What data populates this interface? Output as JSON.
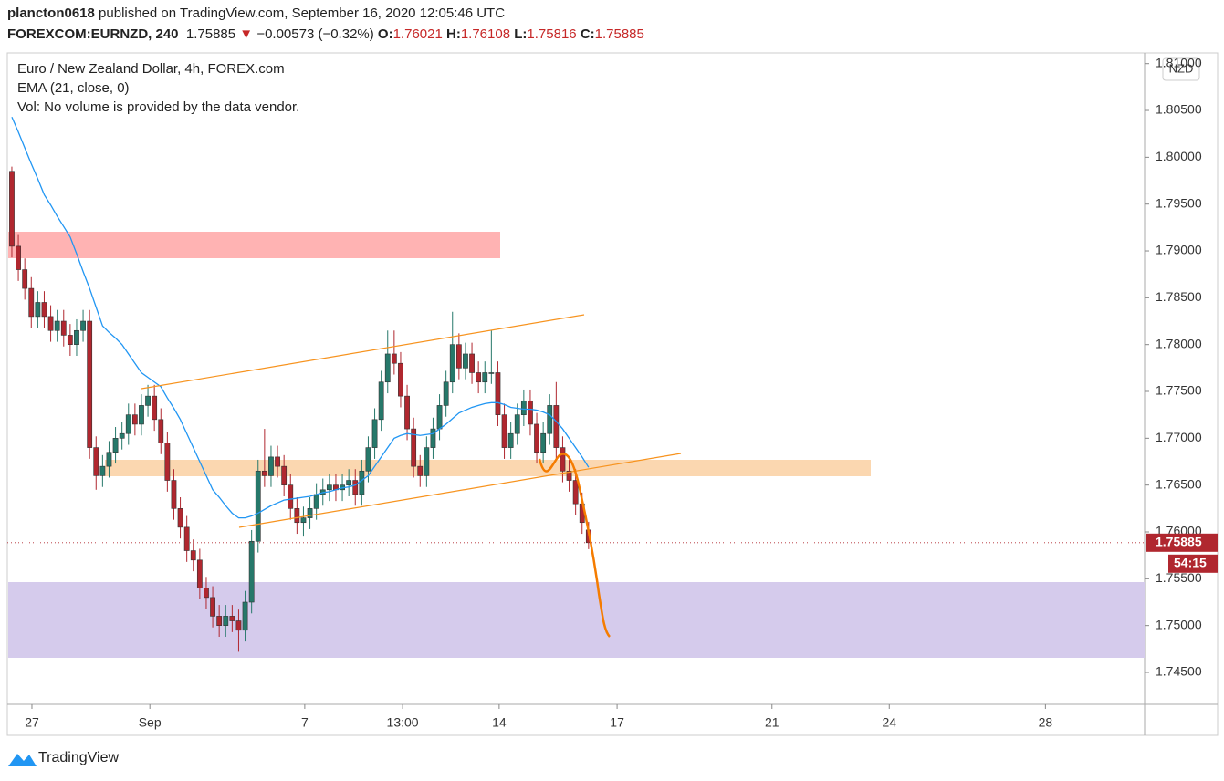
{
  "header": {
    "publisher": "plancton0618",
    "published": "published on TradingView.com, September 16, 2020 12:05:46 UTC",
    "symbol": "FOREXCOM:EURNZD, 240",
    "arrow": "▼",
    "change": "−0.00573 (−0.32%)",
    "o": "O:",
    "h": "H:",
    "l": "L:",
    "c": "C:"
  },
  "chart_data": {
    "type": "candlestick",
    "title": "Euro / New Zealand Dollar, 4h, FOREX.com",
    "indicator": "EMA (21, close, 0)",
    "volume_note": "Vol: No volume is provided by the data vendor.",
    "currency": "NZD",
    "countdown": "54:15",
    "up_color": "#26786a",
    "down_color": "#b0272f",
    "ema_color": "#2196f3",
    "open": [
      1.7985,
      1.7905,
      1.788,
      1.786,
      1.783,
      1.7845,
      1.783,
      1.7815,
      1.7825,
      1.781,
      1.78,
      1.7815,
      1.7825,
      1.769,
      1.766,
      1.767,
      1.7685,
      1.77,
      1.7705,
      1.7725,
      1.7715,
      1.7735,
      1.7745,
      1.772,
      1.7695,
      1.7655,
      1.7625,
      1.7605,
      1.758,
      1.757,
      1.754,
      1.753,
      1.751,
      1.75,
      1.751,
      1.7505,
      1.7495,
      1.7525,
      1.759,
      1.7665,
      1.766,
      1.768,
      1.767,
      1.765,
      1.7625,
      1.761,
      1.7615,
      1.7625,
      1.764,
      1.7645,
      1.765,
      1.7645,
      1.765,
      1.7655,
      1.764,
      1.7665,
      1.769,
      1.772,
      1.776,
      1.779,
      1.778,
      1.7745,
      1.771,
      1.767,
      1.766,
      1.769,
      1.771,
      1.7735,
      1.776,
      1.78,
      1.7775,
      1.779,
      1.777,
      1.776,
      1.777,
      1.777,
      1.7725,
      1.769,
      1.7705,
      1.7725,
      1.774,
      1.7715,
      1.7685,
      1.7705,
      1.7735,
      1.769,
      1.7665,
      1.7655,
      1.763,
      1.76021
    ],
    "high": [
      1.799,
      1.7917,
      1.7892,
      1.7872,
      1.7857,
      1.7857,
      1.7842,
      1.7837,
      1.7837,
      1.7822,
      1.7827,
      1.7837,
      1.7837,
      1.7702,
      1.7682,
      1.7697,
      1.7712,
      1.7717,
      1.7737,
      1.7737,
      1.7747,
      1.7757,
      1.7757,
      1.7732,
      1.7707,
      1.7667,
      1.7637,
      1.7617,
      1.7592,
      1.7582,
      1.7552,
      1.7542,
      1.7522,
      1.7522,
      1.7522,
      1.7517,
      1.7537,
      1.7602,
      1.7677,
      1.771,
      1.7692,
      1.7692,
      1.7682,
      1.7662,
      1.7637,
      1.7627,
      1.7637,
      1.7652,
      1.7657,
      1.7662,
      1.7662,
      1.7662,
      1.7667,
      1.7667,
      1.7677,
      1.7702,
      1.7732,
      1.7772,
      1.7815,
      1.7815,
      1.7792,
      1.7757,
      1.7722,
      1.7682,
      1.7702,
      1.7722,
      1.7747,
      1.7772,
      1.7835,
      1.7812,
      1.7802,
      1.7802,
      1.7782,
      1.7782,
      1.7815,
      1.7782,
      1.7737,
      1.7717,
      1.7737,
      1.7752,
      1.7752,
      1.7727,
      1.7717,
      1.7747,
      1.776,
      1.7702,
      1.7677,
      1.7667,
      1.7642,
      1.76108
    ],
    "low": [
      1.7893,
      1.7868,
      1.7848,
      1.7818,
      1.7818,
      1.7818,
      1.7803,
      1.7803,
      1.7798,
      1.7788,
      1.7788,
      1.7803,
      1.7678,
      1.7645,
      1.7648,
      1.7658,
      1.7673,
      1.7688,
      1.7693,
      1.7703,
      1.7703,
      1.7723,
      1.7708,
      1.7683,
      1.7643,
      1.7613,
      1.7593,
      1.7568,
      1.7558,
      1.7528,
      1.7518,
      1.7498,
      1.7488,
      1.7488,
      1.7493,
      1.7472,
      1.7483,
      1.7513,
      1.7578,
      1.7648,
      1.7648,
      1.7658,
      1.7638,
      1.7613,
      1.7598,
      1.7595,
      1.7603,
      1.7613,
      1.7628,
      1.7633,
      1.7633,
      1.7633,
      1.7638,
      1.7628,
      1.7628,
      1.7653,
      1.7678,
      1.7708,
      1.7748,
      1.7768,
      1.7733,
      1.7698,
      1.7658,
      1.7648,
      1.7648,
      1.7678,
      1.7698,
      1.7723,
      1.7748,
      1.7763,
      1.7763,
      1.7758,
      1.7748,
      1.7748,
      1.7758,
      1.7713,
      1.7678,
      1.7678,
      1.7693,
      1.7713,
      1.7703,
      1.7673,
      1.7673,
      1.7693,
      1.7678,
      1.7653,
      1.7643,
      1.7618,
      1.7598,
      1.75816
    ],
    "close": [
      1.7905,
      1.788,
      1.786,
      1.783,
      1.7845,
      1.783,
      1.7815,
      1.7825,
      1.781,
      1.78,
      1.7815,
      1.7825,
      1.769,
      1.766,
      1.767,
      1.7685,
      1.77,
      1.7705,
      1.7725,
      1.7715,
      1.7735,
      1.7745,
      1.772,
      1.7695,
      1.7655,
      1.7625,
      1.7605,
      1.758,
      1.757,
      1.754,
      1.753,
      1.751,
      1.75,
      1.751,
      1.7505,
      1.7495,
      1.7525,
      1.759,
      1.7665,
      1.766,
      1.768,
      1.767,
      1.765,
      1.7625,
      1.761,
      1.7615,
      1.7625,
      1.764,
      1.7645,
      1.765,
      1.7645,
      1.765,
      1.7655,
      1.764,
      1.7665,
      1.769,
      1.772,
      1.776,
      1.779,
      1.778,
      1.7745,
      1.771,
      1.767,
      1.766,
      1.769,
      1.771,
      1.7735,
      1.776,
      1.78,
      1.7775,
      1.779,
      1.777,
      1.776,
      1.777,
      1.777,
      1.7725,
      1.769,
      1.7705,
      1.7725,
      1.774,
      1.7715,
      1.7685,
      1.7705,
      1.7735,
      1.769,
      1.7665,
      1.7655,
      1.763,
      1.761,
      1.75885
    ],
    "ema": [
      1.8043,
      1.8027,
      1.801,
      1.7993,
      1.7977,
      1.796,
      1.7949,
      1.7937,
      1.7926,
      1.7915,
      1.7897,
      1.7878,
      1.786,
      1.784,
      1.782,
      1.7813,
      1.7807,
      1.78,
      1.779,
      1.778,
      1.777,
      1.7765,
      1.776,
      1.7755,
      1.7743,
      1.7732,
      1.772,
      1.7705,
      1.769,
      1.7675,
      1.766,
      1.7645,
      1.7637,
      1.7628,
      1.762,
      1.7615,
      1.7615,
      1.7617,
      1.762,
      1.7624,
      1.7628,
      1.7631,
      1.7634,
      1.7635,
      1.7636,
      1.7637,
      1.7638,
      1.764,
      1.7642,
      1.7643,
      1.7645,
      1.7647,
      1.7648,
      1.765,
      1.7655,
      1.766,
      1.767,
      1.768,
      1.769,
      1.77,
      1.7703,
      1.7705,
      1.7704,
      1.7703,
      1.7704,
      1.7705,
      1.771,
      1.7715,
      1.7721,
      1.7727,
      1.773,
      1.7733,
      1.7735,
      1.7737,
      1.7738,
      1.7738,
      1.7736,
      1.7733,
      1.7732,
      1.7731,
      1.7731,
      1.773,
      1.7728,
      1.7725,
      1.7718,
      1.771,
      1.77,
      1.769,
      1.768,
      1.7669
    ],
    "xlim": [
      -0.7,
      174.8
    ],
    "xticks": [
      {
        "value": 3.1,
        "label": "27"
      },
      {
        "value": 21.3,
        "label": "Sep"
      },
      {
        "value": 45.2,
        "label": "7"
      },
      {
        "value": 60.3,
        "label": "13:00"
      },
      {
        "value": 75.2,
        "label": "14"
      },
      {
        "value": 93.4,
        "label": "17"
      },
      {
        "value": 117.3,
        "label": "21"
      },
      {
        "value": 135.4,
        "label": "24"
      },
      {
        "value": 159.5,
        "label": "28"
      }
    ],
    "ylim": [
      1.74159,
      1.81114
    ],
    "yticks": [
      {
        "value": 1.745,
        "label": "1.74500"
      },
      {
        "value": 1.75,
        "label": "1.75000"
      },
      {
        "value": 1.755,
        "label": "1.75500"
      },
      {
        "value": 1.76,
        "label": "1.76000"
      },
      {
        "value": 1.765,
        "label": "1.76500"
      },
      {
        "value": 1.77,
        "label": "1.77000"
      },
      {
        "value": 1.775,
        "label": "1.77500"
      },
      {
        "value": 1.78,
        "label": "1.78000"
      },
      {
        "value": 1.785,
        "label": "1.78500"
      },
      {
        "value": 1.79,
        "label": "1.79000"
      },
      {
        "value": 1.795,
        "label": "1.79500"
      },
      {
        "value": 1.8,
        "label": "1.80000"
      },
      {
        "value": 1.805,
        "label": "1.80500"
      },
      {
        "value": 1.81,
        "label": "1.81000"
      }
    ]
  },
  "footer": {
    "brand": "TradingView"
  }
}
